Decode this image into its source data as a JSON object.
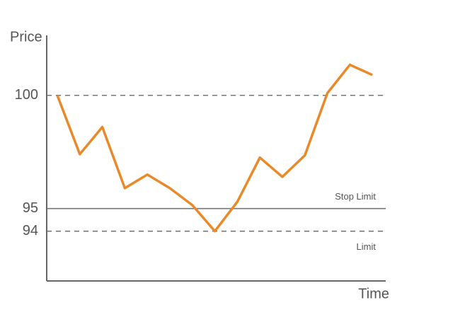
{
  "chart_data": {
    "type": "line",
    "y_label": "Price",
    "x_label": "Time",
    "categories": [
      null,
      null,
      null,
      null,
      null,
      null,
      null,
      null,
      null,
      null,
      null,
      null,
      null,
      null,
      null
    ],
    "values": [
      100,
      97.4,
      98.6,
      95.9,
      96.5,
      95.9,
      95.15,
      94.0,
      95.3,
      97.25,
      96.4,
      97.35,
      100.1,
      101.35,
      100.9
    ],
    "color": "#e8892a",
    "ylim": [
      91.8,
      102.65
    ],
    "yticks": [
      100,
      95,
      94
    ],
    "reference_lines": [
      {
        "value": 100,
        "style": "dashed"
      },
      {
        "value": 95,
        "style": "solid",
        "label": "Stop Limit"
      },
      {
        "value": 94,
        "style": "dashed",
        "label": "Limit"
      }
    ],
    "reference_color": "#777777"
  }
}
